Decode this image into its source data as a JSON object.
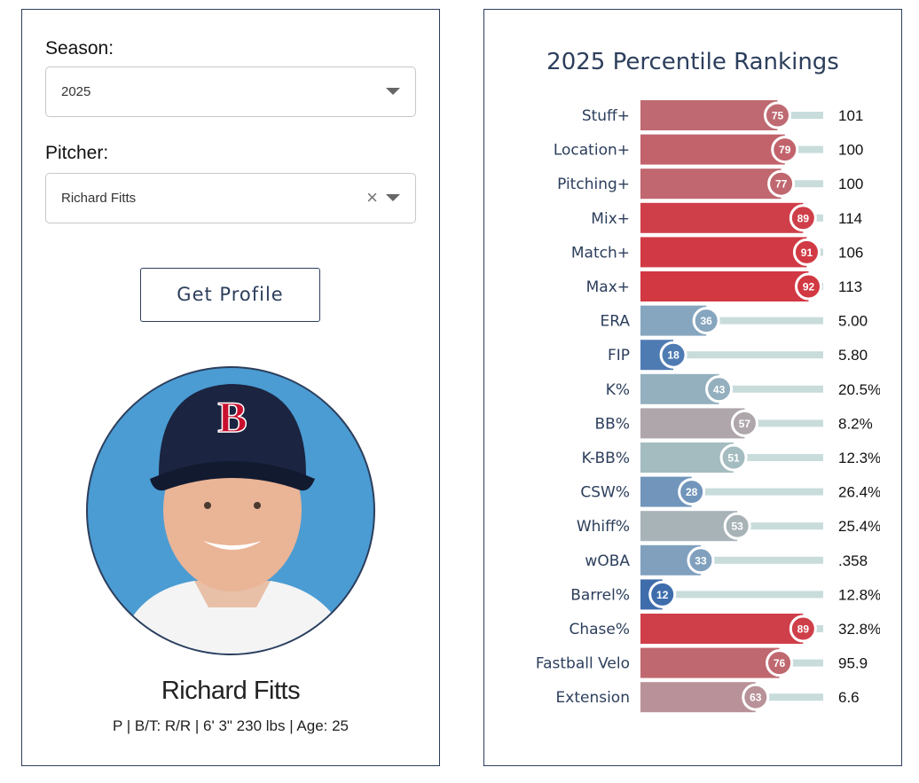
{
  "filters": {
    "season_label": "Season:",
    "season_value": "2025",
    "pitcher_label": "Pitcher:",
    "pitcher_value": "Richard Fitts",
    "button": "Get Profile"
  },
  "player": {
    "name": "Richard Fitts",
    "bio": "P | B/T: R/R | 6' 3\" 230 lbs | Age: 25",
    "cap_logo": "B"
  },
  "chart_data": {
    "type": "bar",
    "title": "2025 Percentile Rankings",
    "xlim": [
      0,
      100
    ],
    "rows": [
      {
        "label": "Stuff+",
        "percentile": 75,
        "value": "101",
        "color": "#bf6a72"
      },
      {
        "label": "Location+",
        "percentile": 79,
        "value": "100",
        "color": "#c2636c"
      },
      {
        "label": "Pitching+",
        "percentile": 77,
        "value": "100",
        "color": "#c0676f"
      },
      {
        "label": "Mix+",
        "percentile": 89,
        "value": "114",
        "color": "#cf3f49"
      },
      {
        "label": "Match+",
        "percentile": 91,
        "value": "106",
        "color": "#d13a44"
      },
      {
        "label": "Max+",
        "percentile": 92,
        "value": "113",
        "color": "#d23842"
      },
      {
        "label": "ERA",
        "percentile": 36,
        "value": "5.00",
        "color": "#86a5be"
      },
      {
        "label": "FIP",
        "percentile": 18,
        "value": "5.80",
        "color": "#4f7bb3"
      },
      {
        "label": "K%",
        "percentile": 43,
        "value": "20.5%",
        "color": "#94b0bf"
      },
      {
        "label": "BB%",
        "percentile": 57,
        "value": "8.2%",
        "color": "#aea6ab"
      },
      {
        "label": "K-BB%",
        "percentile": 51,
        "value": "12.3%",
        "color": "#a4bcc0"
      },
      {
        "label": "CSW%",
        "percentile": 28,
        "value": "26.4%",
        "color": "#7195bb"
      },
      {
        "label": "Whiff%",
        "percentile": 53,
        "value": "25.4%",
        "color": "#a8b3b8"
      },
      {
        "label": "wOBA",
        "percentile": 33,
        "value": ".358",
        "color": "#80a0be"
      },
      {
        "label": "Barrel%",
        "percentile": 12,
        "value": "12.8%",
        "color": "#3f6dac"
      },
      {
        "label": "Chase%",
        "percentile": 89,
        "value": "32.8%",
        "color": "#cf3f49"
      },
      {
        "label": "Fastball Velo",
        "percentile": 76,
        "value": "95.9",
        "color": "#c0686f"
      },
      {
        "label": "Extension",
        "percentile": 63,
        "value": "6.6",
        "color": "#b89298"
      }
    ],
    "track_color": "#c9dcdc"
  }
}
